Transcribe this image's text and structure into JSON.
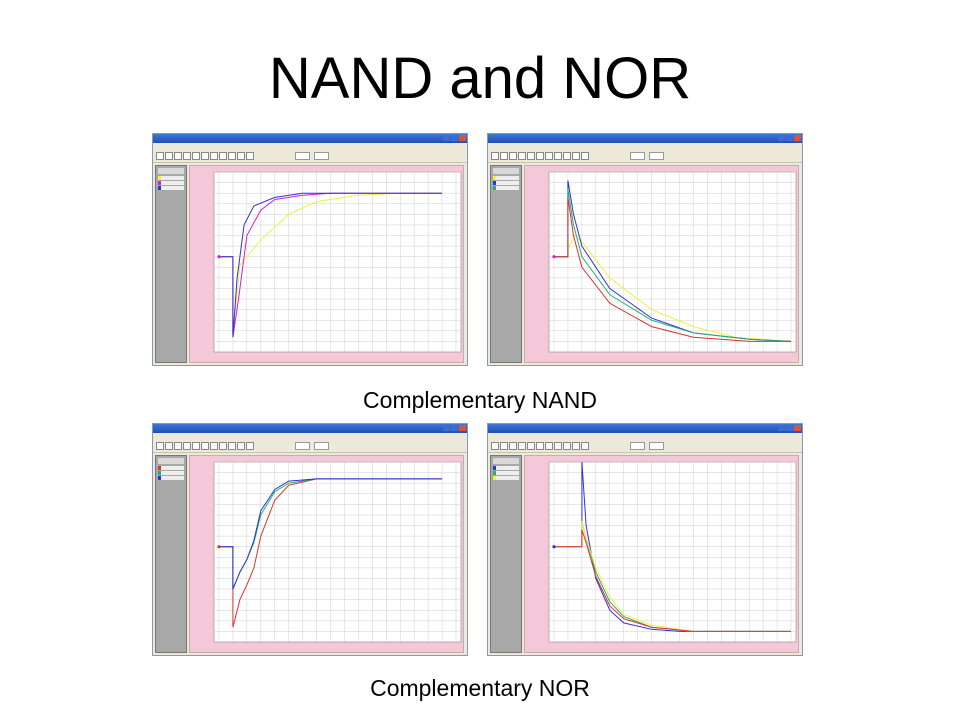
{
  "slide": {
    "title": "NAND and NOR",
    "caption_nand": "Complementary NAND",
    "caption_nor": "Complementary NOR"
  },
  "colors": {
    "magenta": "#d020d0",
    "blue": "#3030e0",
    "yellow": "#f0f040",
    "red": "#e03030",
    "green": "#20b070"
  },
  "panels": [
    {
      "id": "nand-left",
      "series": [
        {
          "color": "yellow",
          "points": [
            [
              0,
              0
            ],
            [
              1,
              0
            ],
            [
              1,
              -36
            ],
            [
              1.5,
              -4
            ],
            [
              3,
              8
            ],
            [
              5,
              20
            ],
            [
              7,
              26
            ],
            [
              10,
              29
            ],
            [
              13,
              30
            ],
            [
              16,
              30
            ]
          ]
        },
        {
          "color": "magenta",
          "points": [
            [
              0,
              0
            ],
            [
              1,
              0
            ],
            [
              1,
              -38
            ],
            [
              1.4,
              -20
            ],
            [
              2,
              10
            ],
            [
              3,
              22
            ],
            [
              4,
              27
            ],
            [
              6,
              29
            ],
            [
              8,
              30
            ],
            [
              16,
              30
            ]
          ]
        },
        {
          "color": "blue",
          "points": [
            [
              0,
              0
            ],
            [
              1,
              0
            ],
            [
              1,
              -38
            ],
            [
              1.3,
              -10
            ],
            [
              1.8,
              15
            ],
            [
              2.5,
              24
            ],
            [
              4,
              28
            ],
            [
              6,
              30
            ],
            [
              16,
              30
            ]
          ]
        }
      ]
    },
    {
      "id": "nand-right",
      "series": [
        {
          "color": "yellow",
          "points": [
            [
              0,
              0
            ],
            [
              1,
              0
            ],
            [
              1,
              4
            ],
            [
              1.5,
              10
            ],
            [
              2,
              7
            ],
            [
              4,
              -10
            ],
            [
              7,
              -25
            ],
            [
              10,
              -33
            ],
            [
              13,
              -38
            ],
            [
              17,
              -40
            ]
          ]
        },
        {
          "color": "blue",
          "points": [
            [
              0,
              0
            ],
            [
              1,
              0
            ],
            [
              1,
              36
            ],
            [
              1.4,
              20
            ],
            [
              2,
              5
            ],
            [
              4,
              -15
            ],
            [
              7,
              -29
            ],
            [
              10,
              -36
            ],
            [
              14,
              -39
            ],
            [
              17,
              -40
            ]
          ]
        },
        {
          "color": "green",
          "points": [
            [
              0,
              0
            ],
            [
              1,
              0
            ],
            [
              1,
              32
            ],
            [
              1.4,
              15
            ],
            [
              2,
              0
            ],
            [
              4,
              -18
            ],
            [
              7,
              -30
            ],
            [
              10,
              -36
            ],
            [
              14,
              -39
            ],
            [
              17,
              -40
            ]
          ]
        },
        {
          "color": "red",
          "points": [
            [
              0,
              0
            ],
            [
              1,
              0
            ],
            [
              1,
              28
            ],
            [
              1.4,
              10
            ],
            [
              2,
              -5
            ],
            [
              4,
              -22
            ],
            [
              7,
              -33
            ],
            [
              10,
              -38
            ],
            [
              14,
              -40
            ],
            [
              17,
              -40
            ]
          ]
        }
      ]
    },
    {
      "id": "nor-left",
      "series": [
        {
          "color": "red",
          "points": [
            [
              0,
              0
            ],
            [
              1,
              0
            ],
            [
              1,
              -38
            ],
            [
              1.5,
              -25
            ],
            [
              2,
              -18
            ],
            [
              2.5,
              -10
            ],
            [
              3,
              5
            ],
            [
              4,
              22
            ],
            [
              5,
              29
            ],
            [
              7,
              32
            ],
            [
              16,
              32
            ]
          ]
        },
        {
          "color": "green",
          "points": [
            [
              0,
              0
            ],
            [
              1,
              0
            ],
            [
              1,
              -20
            ],
            [
              1.5,
              -12
            ],
            [
              2,
              -6
            ],
            [
              2.5,
              2
            ],
            [
              3,
              15
            ],
            [
              4,
              26
            ],
            [
              5,
              30
            ],
            [
              7,
              32
            ],
            [
              16,
              32
            ]
          ]
        },
        {
          "color": "blue",
          "points": [
            [
              0,
              0
            ],
            [
              1,
              0
            ],
            [
              1,
              -20
            ],
            [
              1.5,
              -12
            ],
            [
              2,
              -6
            ],
            [
              2.5,
              3
            ],
            [
              3,
              17
            ],
            [
              4,
              27
            ],
            [
              5,
              31
            ],
            [
              7,
              32
            ],
            [
              16,
              32
            ]
          ]
        }
      ]
    },
    {
      "id": "nor-right",
      "series": [
        {
          "color": "blue",
          "points": [
            [
              0,
              0
            ],
            [
              1,
              0
            ],
            [
              1,
              0
            ],
            [
              2,
              0
            ],
            [
              2,
              40
            ],
            [
              2.3,
              10
            ],
            [
              3,
              -15
            ],
            [
              4,
              -30
            ],
            [
              5,
              -36
            ],
            [
              7,
              -39
            ],
            [
              9,
              -40
            ],
            [
              17,
              -40
            ]
          ]
        },
        {
          "color": "green",
          "points": [
            [
              0,
              0
            ],
            [
              2,
              0
            ],
            [
              2,
              12
            ],
            [
              2.3,
              4
            ],
            [
              3,
              -12
            ],
            [
              4,
              -26
            ],
            [
              5,
              -33
            ],
            [
              7,
              -38
            ],
            [
              10,
              -40
            ],
            [
              17,
              -40
            ]
          ]
        },
        {
          "color": "yellow",
          "points": [
            [
              0,
              0
            ],
            [
              2,
              0
            ],
            [
              2,
              12
            ],
            [
              2.3,
              4
            ],
            [
              3,
              -10
            ],
            [
              4,
              -24
            ],
            [
              5,
              -32
            ],
            [
              7,
              -37
            ],
            [
              10,
              -40
            ],
            [
              17,
              -40
            ]
          ]
        },
        {
          "color": "red",
          "points": [
            [
              0,
              0
            ],
            [
              2,
              0
            ],
            [
              2,
              8
            ],
            [
              2.3,
              2
            ],
            [
              3,
              -14
            ],
            [
              4,
              -28
            ],
            [
              5,
              -34
            ],
            [
              7,
              -38
            ],
            [
              10,
              -40
            ],
            [
              17,
              -40
            ]
          ]
        }
      ]
    }
  ]
}
